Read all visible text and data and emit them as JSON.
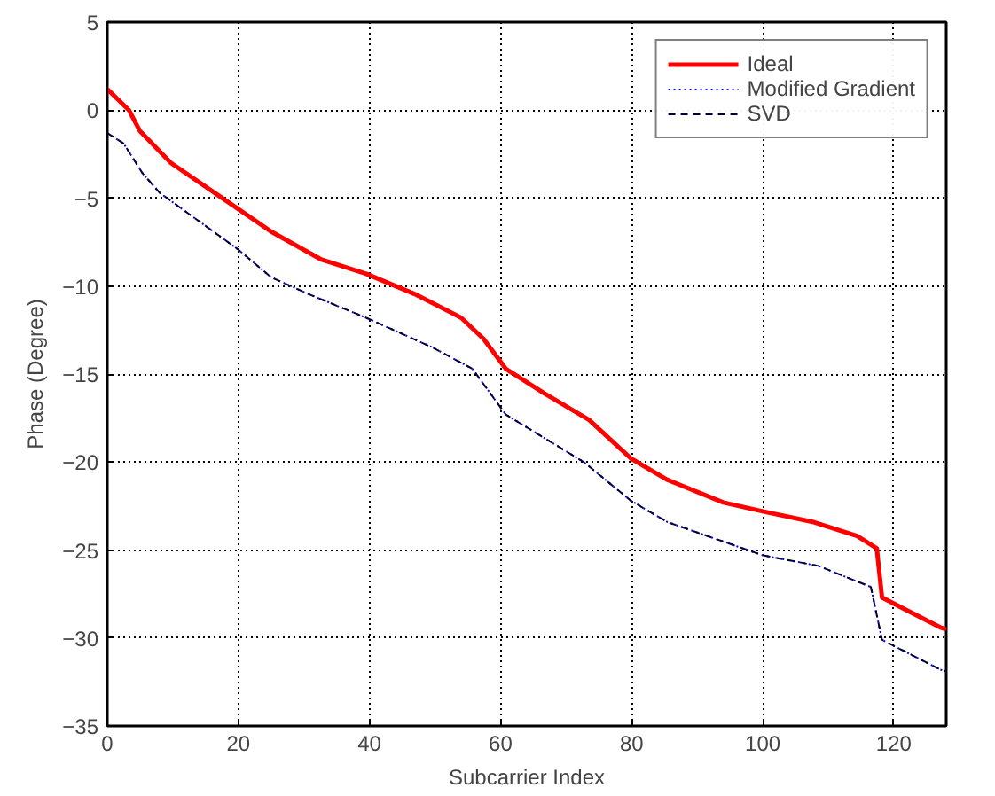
{
  "chart_data": {
    "type": "line",
    "xlabel": "Subcarrier Index",
    "ylabel": "Phase (Degree)",
    "xlim": [
      0,
      128
    ],
    "ylim": [
      -35,
      5
    ],
    "xticks": [
      0,
      20,
      40,
      60,
      80,
      100,
      120
    ],
    "yticks": [
      -35,
      -30,
      -25,
      -20,
      -15,
      -10,
      -5,
      0,
      5
    ],
    "grid": true,
    "legend": "top right",
    "series": [
      {
        "name": "Ideal",
        "color": "#ff0000",
        "line_style": "solid",
        "x": [
          0,
          3.3,
          5,
          9.7,
          19.9,
          25,
          32.7,
          39.5,
          47.2,
          54,
          57.4,
          60.8,
          66.7,
          73.5,
          79.9,
          85.4,
          94,
          100,
          107.6,
          114.4,
          117.4,
          118.2,
          127.1,
          128
        ],
        "values": [
          1.2,
          0,
          -1.2,
          -3.0,
          -5.6,
          -6.9,
          -8.5,
          -9.3,
          -10.5,
          -11.8,
          -13.0,
          -14.7,
          -16.1,
          -17.6,
          -19.8,
          -21.0,
          -22.3,
          -22.8,
          -23.4,
          -24.2,
          -24.9,
          -27.7,
          -29.4,
          -29.5
        ]
      },
      {
        "name": "Modified Gradient",
        "color": "#0000ff",
        "line_style": "dotted",
        "x": [
          0,
          2.5,
          5.4,
          8,
          19.9,
          25,
          31,
          39.5,
          49.7,
          55.7,
          60.8,
          72.7,
          79.9,
          85.4,
          100,
          108.5,
          116.5,
          118.2,
          127.1,
          128
        ],
        "values": [
          -1.3,
          -1.9,
          -3.6,
          -4.7,
          -7.9,
          -9.5,
          -10.5,
          -11.8,
          -13.5,
          -14.7,
          -17.3,
          -20.0,
          -22.2,
          -23.4,
          -25.3,
          -25.9,
          -27.1,
          -30.1,
          -31.8,
          -31.9
        ]
      },
      {
        "name": "SVD",
        "color": "#000033",
        "line_style": "dashed",
        "x": [
          0,
          2.5,
          5.4,
          8,
          19.9,
          25,
          31,
          39.5,
          49.7,
          55.7,
          60.8,
          72.7,
          79.9,
          85.4,
          100,
          108.5,
          116.5,
          118.2,
          127.1,
          128
        ],
        "values": [
          -1.3,
          -1.9,
          -3.6,
          -4.7,
          -7.9,
          -9.5,
          -10.5,
          -11.8,
          -13.5,
          -14.7,
          -17.3,
          -20.0,
          -22.2,
          -23.4,
          -25.3,
          -25.9,
          -27.1,
          -30.1,
          -31.8,
          -31.9
        ]
      }
    ]
  }
}
